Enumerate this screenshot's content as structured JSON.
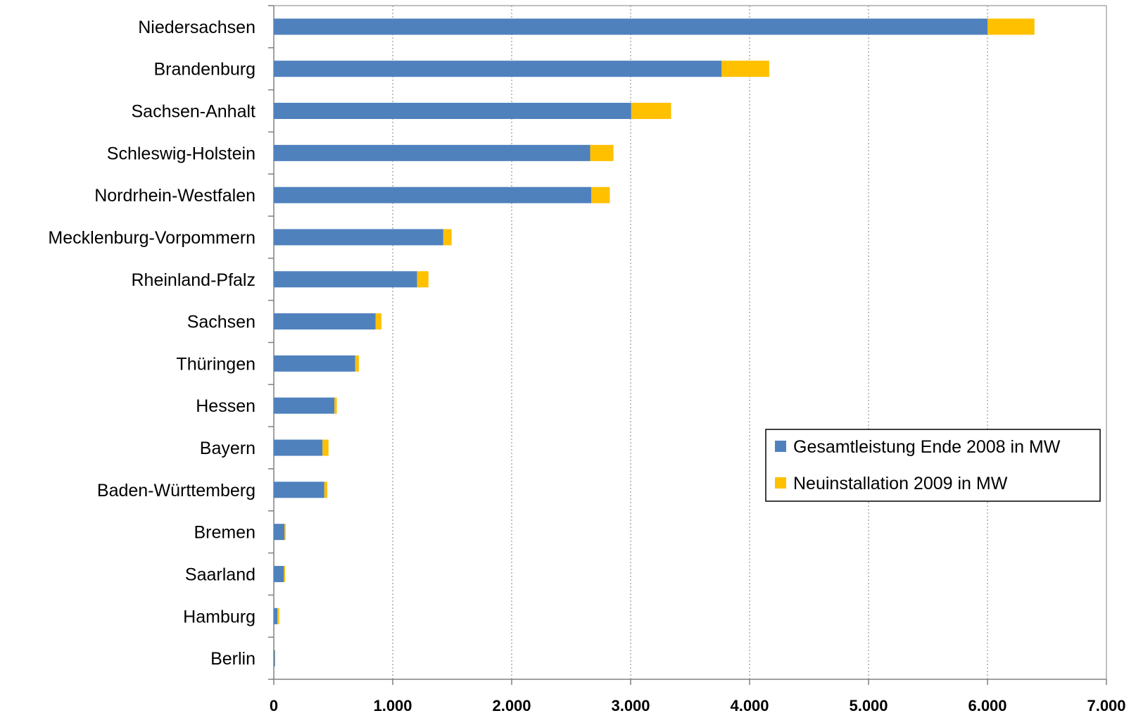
{
  "chart_data": {
    "type": "bar",
    "orientation": "horizontal",
    "stacked": true,
    "title": "",
    "xlabel": "",
    "ylabel": "",
    "categories": [
      "Niedersachsen",
      "Brandenburg",
      "Sachsen-Anhalt",
      "Schleswig-Holstein",
      "Nordrhein-Westfalen",
      "Mecklenburg-Vorpommern",
      "Rheinland-Pfalz",
      "Sachsen",
      "Thüringen",
      "Hessen",
      "Bayern",
      "Baden-Württemberg",
      "Bremen",
      "Saarland",
      "Hamburg",
      "Berlin"
    ],
    "series": [
      {
        "name": "Gesamtleistung Ende 2008 in MW",
        "color": "#4f81bd",
        "values": [
          6000,
          3765,
          3005,
          2660,
          2670,
          1425,
          1205,
          855,
          685,
          510,
          410,
          425,
          90,
          85,
          30,
          10
        ]
      },
      {
        "name": "Neuinstallation 2009 in MW",
        "color": "#ffc000",
        "values": [
          395,
          400,
          335,
          195,
          155,
          70,
          95,
          50,
          30,
          20,
          50,
          25,
          10,
          10,
          15,
          2
        ]
      }
    ],
    "xlim": [
      0,
      7000
    ],
    "xticks": [
      0,
      1000,
      2000,
      3000,
      4000,
      5000,
      6000,
      7000
    ],
    "xtick_labels": [
      "0",
      "1.000",
      "2.000",
      "3.000",
      "4.000",
      "5.000",
      "6.000",
      "7.000"
    ],
    "grid": "vertical dotted",
    "legend_position": "right-center"
  }
}
